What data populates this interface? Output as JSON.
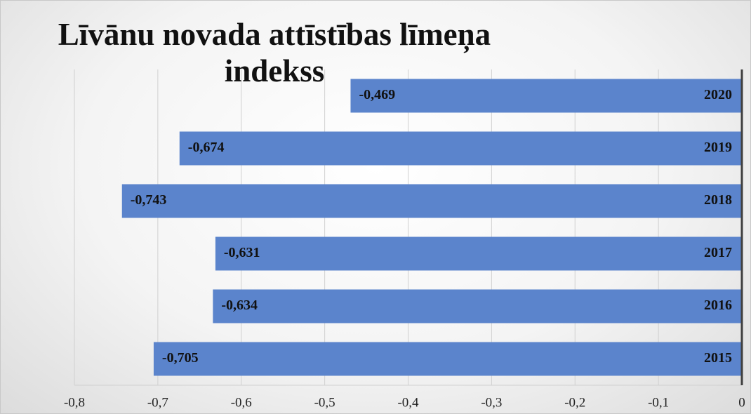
{
  "chart_data": {
    "type": "barh",
    "title": "Līvānu novada attīstības līmeņa indekss",
    "categories": [
      "2020",
      "2019",
      "2018",
      "2017",
      "2016",
      "2015"
    ],
    "values": [
      -0.469,
      -0.674,
      -0.743,
      -0.631,
      -0.634,
      -0.705
    ],
    "value_labels": [
      "-0,469",
      "-0,674",
      "-0,743",
      "-0,631",
      "-0,634",
      "-0,705"
    ],
    "color": "#5b84cc",
    "xlim": [
      -0.8,
      0
    ],
    "xticks": [
      {
        "value": -0.8,
        "label": "-0,8"
      },
      {
        "value": -0.7,
        "label": "-0,7"
      },
      {
        "value": -0.6,
        "label": "-0,6"
      },
      {
        "value": -0.5,
        "label": "-0,5"
      },
      {
        "value": -0.4,
        "label": "-0,4"
      },
      {
        "value": -0.3,
        "label": "-0,3"
      },
      {
        "value": -0.2,
        "label": "-0,2"
      },
      {
        "value": -0.1,
        "label": "-0,1"
      },
      0
    ],
    "grid": true
  }
}
